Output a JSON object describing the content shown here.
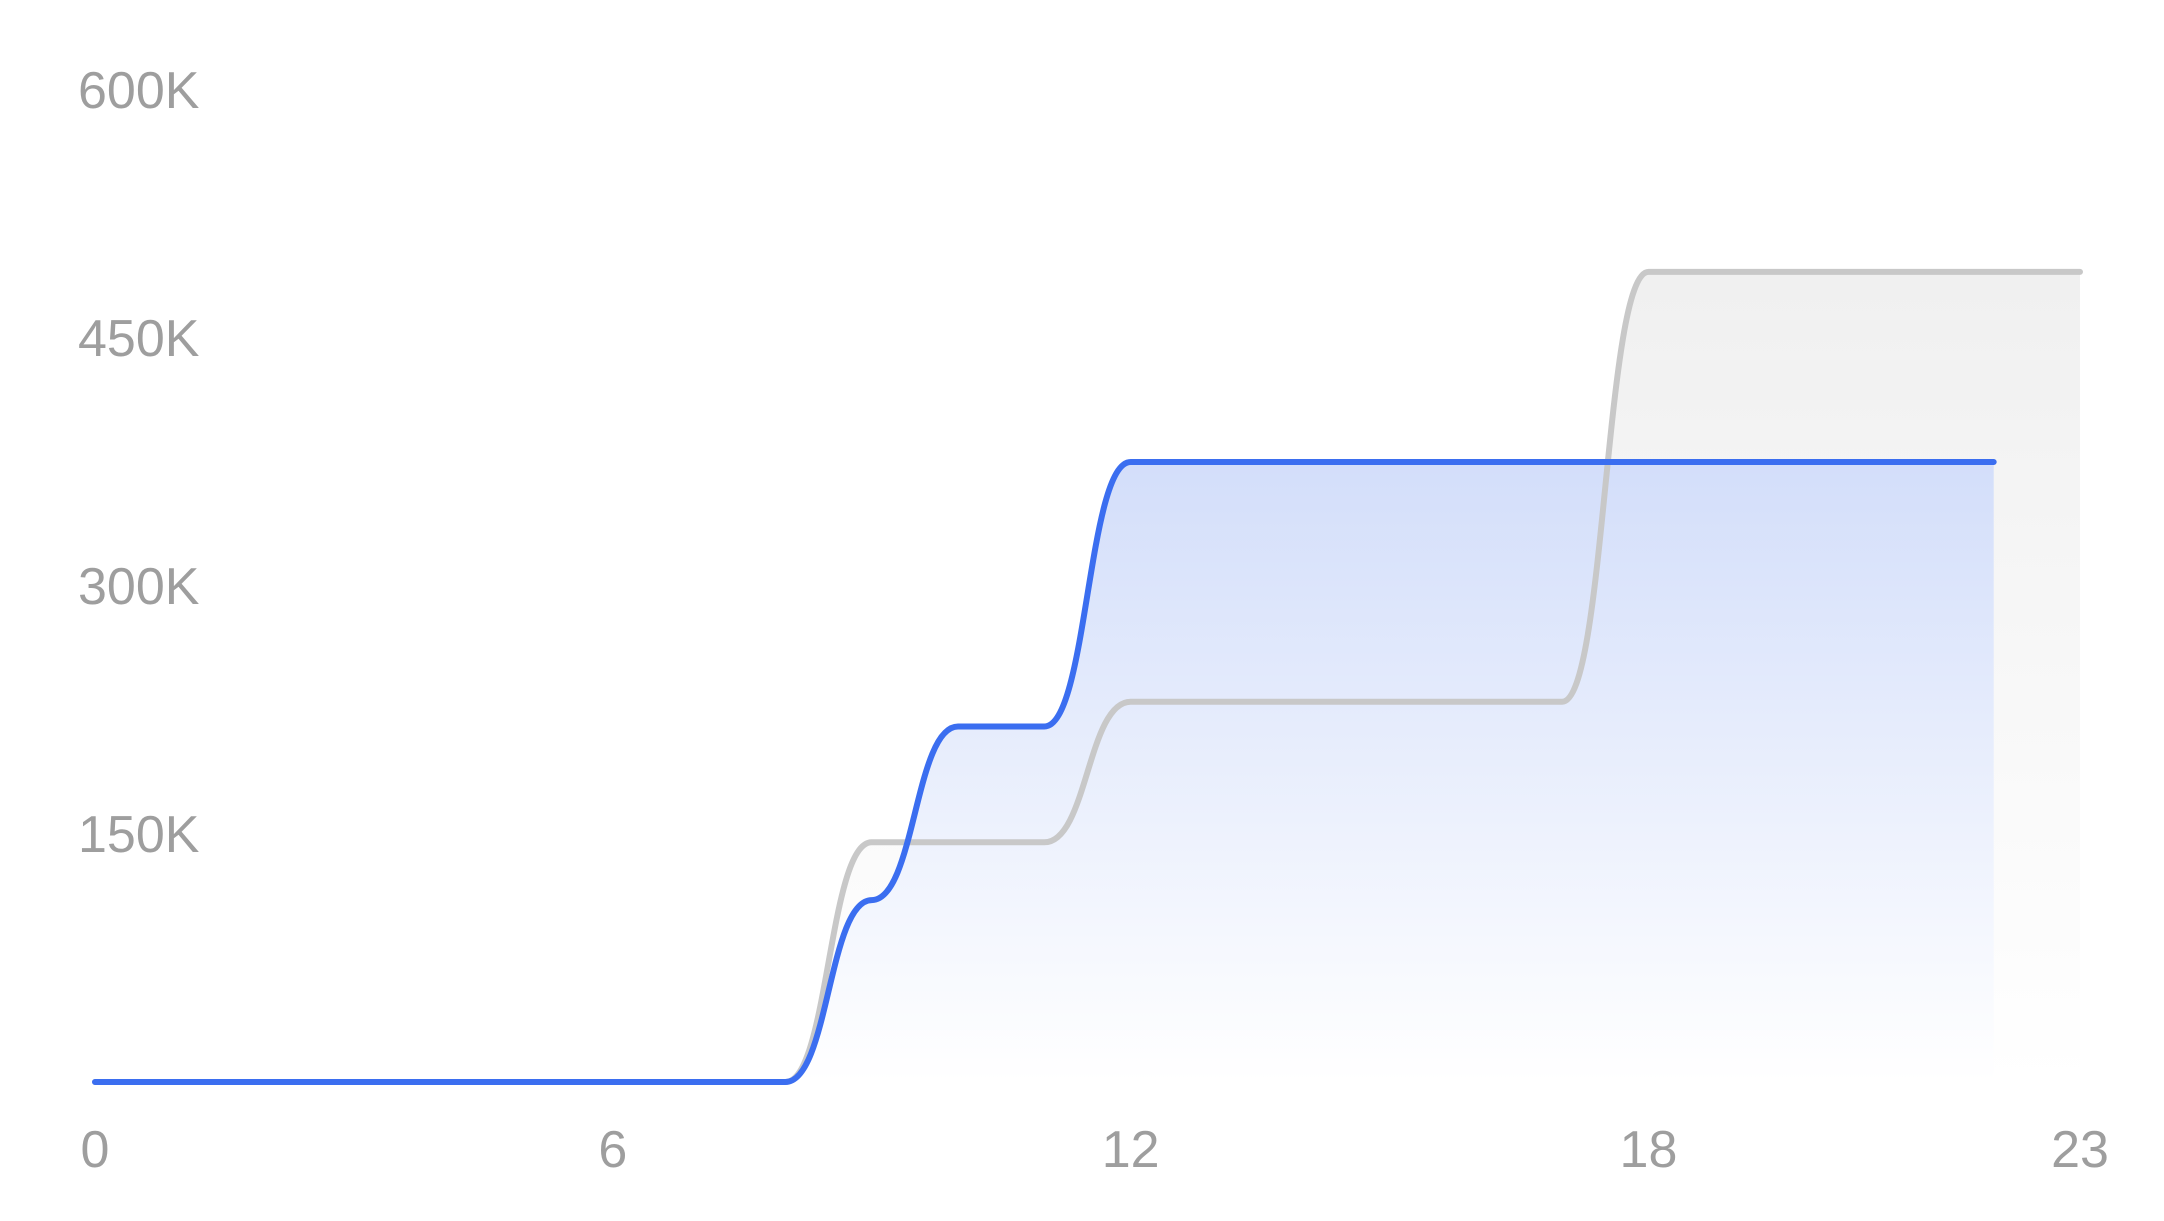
{
  "chart_data": {
    "type": "area",
    "title": "",
    "xlabel": "",
    "ylabel": "",
    "xlim": [
      0,
      23
    ],
    "ylim": [
      0,
      600000
    ],
    "x_ticks": [
      0,
      6,
      12,
      18,
      23
    ],
    "x_tick_labels": [
      "0",
      "6",
      "12",
      "18",
      "23"
    ],
    "y_ticks": [
      150000,
      300000,
      450000,
      600000
    ],
    "y_tick_labels": [
      "150K",
      "300K",
      "450K",
      "600K"
    ],
    "grid": false,
    "legend": "none",
    "series": [
      {
        "color": "#3b6ef0",
        "fill": "gradient",
        "x": [
          0,
          1,
          2,
          3,
          4,
          5,
          6,
          7,
          8,
          9,
          10,
          11,
          12,
          13,
          14,
          15,
          16,
          17,
          18,
          19,
          20,
          21,
          22
        ],
        "values": [
          0,
          0,
          0,
          0,
          0,
          0,
          0,
          0,
          0,
          110000,
          215000,
          215000,
          375000,
          375000,
          375000,
          375000,
          375000,
          375000,
          375000,
          375000,
          375000,
          375000,
          375000
        ]
      },
      {
        "color": "#c8c8c8",
        "fill": "light-gray",
        "x": [
          0,
          1,
          2,
          3,
          4,
          5,
          6,
          7,
          8,
          9,
          10,
          11,
          12,
          13,
          14,
          15,
          16,
          17,
          18,
          19,
          20,
          21,
          22,
          23
        ],
        "values": [
          0,
          0,
          0,
          0,
          0,
          0,
          0,
          0,
          0,
          145000,
          145000,
          145000,
          230000,
          230000,
          230000,
          230000,
          230000,
          230000,
          490000,
          490000,
          490000,
          490000,
          490000,
          490000
        ]
      }
    ]
  }
}
